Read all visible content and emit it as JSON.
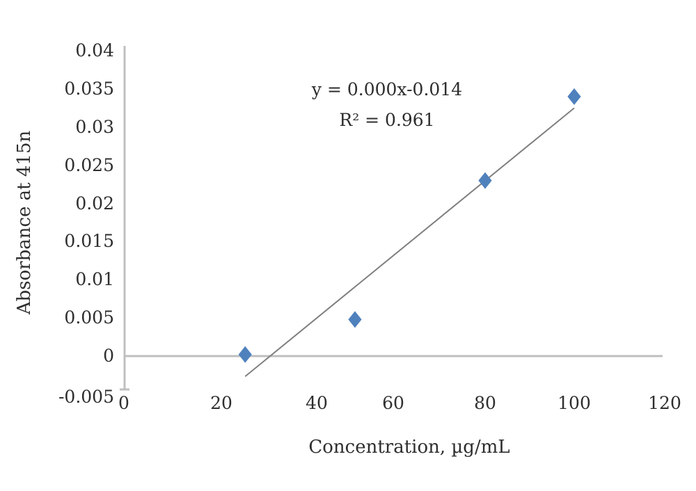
{
  "chart_data": {
    "type": "scatter",
    "title": "",
    "xlabel": "Concentration, µg/mL",
    "ylabel": "Absorbance at 415n",
    "xlim": [
      0,
      120
    ],
    "ylim": [
      -0.005,
      0.04
    ],
    "x_ticks": [
      "0",
      "20",
      "40",
      "60",
      "80",
      "100",
      "120"
    ],
    "y_ticks": [
      "0.04",
      "0.035",
      "0.03",
      "0.025",
      "0.02",
      "0.015",
      "0.01",
      "0.005",
      "0",
      "-0.005"
    ],
    "grid": false,
    "legend": null,
    "series": [
      {
        "name": "Absorbance",
        "marker": "diamond",
        "color": "#4f81bd",
        "x": [
          25,
          50,
          80,
          100
        ],
        "y": [
          0.0002,
          0.0048,
          0.023,
          0.034
        ]
      }
    ],
    "trendline": {
      "type": "linear",
      "color": "#7f7f7f",
      "equation": "y = 0.000x-0.014",
      "r_squared": "R² = 0.961"
    }
  },
  "annotations": {
    "equation": "y = 0.000x-0.014",
    "r_squared": "R² = 0.961"
  }
}
